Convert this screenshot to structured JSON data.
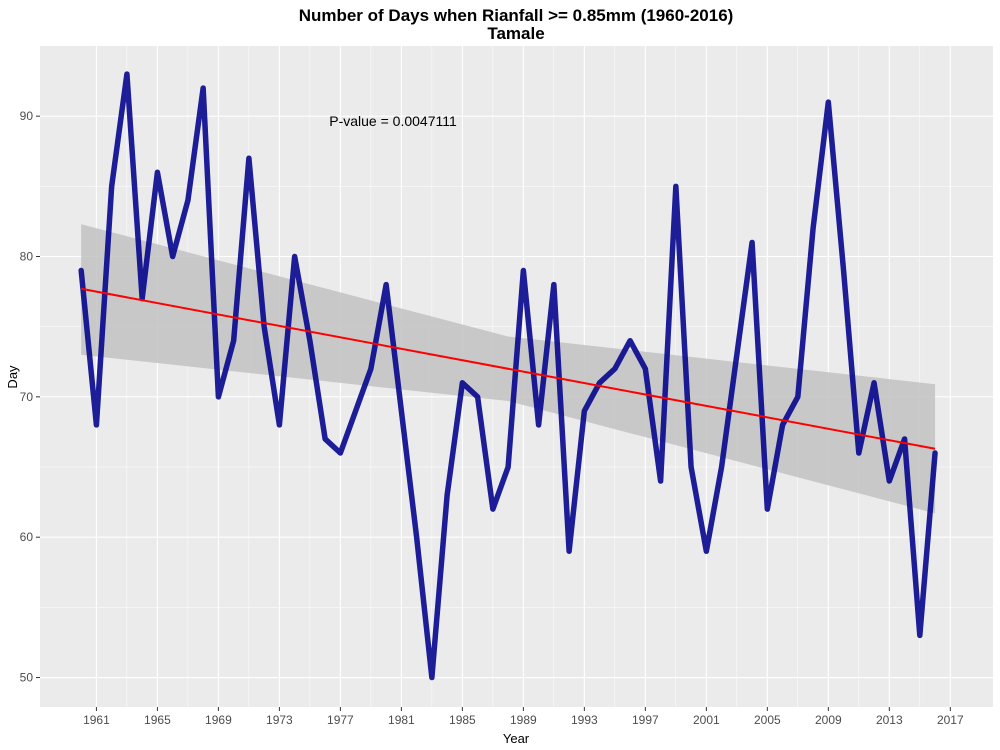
{
  "chart_data": {
    "type": "line",
    "title": "Number of Days when Rianfall >= 0.85mm (1960-2016)",
    "subtitle": "Tamale",
    "xlabel": "Year",
    "ylabel": "Day",
    "annotation": "P-value = 0.0047111",
    "xlim": [
      1957.3,
      2019.8
    ],
    "ylim": [
      47.9,
      95.0
    ],
    "x_ticks": [
      "1961",
      "1965",
      "1969",
      "1973",
      "1977",
      "1981",
      "1985",
      "1989",
      "1993",
      "1997",
      "2001",
      "2005",
      "2009",
      "2013",
      "2017"
    ],
    "y_ticks": [
      "50",
      "60",
      "70",
      "80",
      "90"
    ],
    "grid": true,
    "series": [
      {
        "x": [
          1960,
          1961,
          1962,
          1963,
          1964,
          1965,
          1966,
          1967,
          1968,
          1969,
          1970,
          1971,
          1972,
          1973,
          1974,
          1975,
          1976,
          1977,
          1978,
          1979,
          1980,
          1981,
          1982,
          1983,
          1984,
          1985,
          1986,
          1987,
          1988,
          1989,
          1990,
          1991,
          1992,
          1993,
          1994,
          1995,
          1996,
          1997,
          1998,
          1999,
          2000,
          2001,
          2002,
          2003,
          2004,
          2005,
          2006,
          2007,
          2008,
          2009,
          2010,
          2011,
          2012,
          2013,
          2014,
          2015,
          2016
        ],
        "values": [
          79,
          68,
          85,
          93,
          77,
          86,
          80,
          84,
          92,
          70,
          74,
          87,
          75,
          68,
          80,
          74,
          67,
          66,
          69,
          72,
          78,
          69,
          60,
          50,
          63,
          71,
          70,
          62,
          65,
          79,
          68,
          78,
          59,
          69,
          71,
          72,
          74,
          72,
          64,
          85,
          65,
          59,
          65,
          73,
          81,
          62,
          68,
          70,
          82,
          91,
          79,
          66,
          71,
          64,
          67,
          53,
          66
        ]
      }
    ],
    "trend": {
      "start": [
        1960,
        77.7
      ],
      "end": [
        2016,
        66.3
      ]
    },
    "confidence_band": {
      "x": [
        1960,
        1988,
        2016
      ],
      "upper": [
        82.3,
        74.3,
        70.9
      ],
      "lower": [
        73.0,
        69.7,
        61.7
      ]
    },
    "colors": {
      "line": "#00008b",
      "trend": "#ff0000",
      "band": "#c0c0c0",
      "panel": "#ebebeb",
      "grid": "#ffffff"
    }
  }
}
